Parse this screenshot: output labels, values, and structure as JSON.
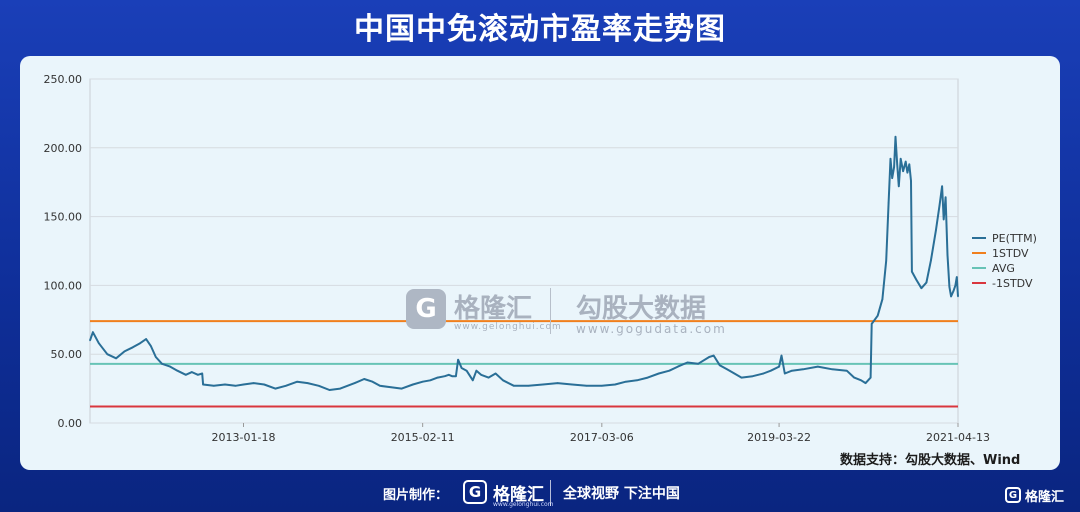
{
  "header": {
    "title": "中国中免滚动市盈率走势图"
  },
  "watermark": {
    "logo_glyph": "G",
    "brand": "格隆汇",
    "brand_sub": "www.gelonghui.com",
    "data_brand": "勾股大数据",
    "data_sub": "www.gogudata.com"
  },
  "source": "数据支持：勾股大数据、Wind",
  "footer": {
    "made_by": "图片制作：",
    "logo_glyph": "G",
    "brand": "格隆汇",
    "brand_sub": "www.gelonghui.com",
    "slogan": "全球视野 下注中国",
    "corner_glyph": "G",
    "corner_brand": "格隆汇"
  },
  "colors": {
    "pe": "#2a6f97",
    "plus1": "#f07f1d",
    "avg": "#67c3b6",
    "minus1": "#d9363e"
  },
  "chart_data": {
    "type": "line",
    "title": "",
    "xlabel": "",
    "ylabel": "",
    "ylim": [
      0,
      250
    ],
    "yticks": [
      "0.00",
      "50.00",
      "100.00",
      "150.00",
      "200.00",
      "250.00"
    ],
    "xticks": [
      "2013-01-18",
      "2015-02-11",
      "2017-03-06",
      "2019-03-22",
      "2021-04-13"
    ],
    "grid": "horizontal",
    "legend_position": "right",
    "legend": [
      "PE(TTM)",
      "1STDV",
      "AVG",
      "-1STDV"
    ],
    "x_range": [
      "2011-04-13",
      "2021-04-13"
    ],
    "reference_lines": [
      {
        "name": "1STDV",
        "value": 74
      },
      {
        "name": "AVG",
        "value": 43
      },
      {
        "name": "-1STDV",
        "value": 12
      }
    ],
    "series": [
      {
        "name": "PE(TTM)",
        "points": [
          [
            "2011-04-13",
            60
          ],
          [
            "2011-04-25",
            66
          ],
          [
            "2011-05-20",
            58
          ],
          [
            "2011-06-25",
            50
          ],
          [
            "2011-08-01",
            47
          ],
          [
            "2011-09-05",
            52
          ],
          [
            "2011-10-10",
            55
          ],
          [
            "2011-11-10",
            58
          ],
          [
            "2011-12-05",
            61
          ],
          [
            "2011-12-25",
            56
          ],
          [
            "2012-01-15",
            48
          ],
          [
            "2012-02-10",
            43
          ],
          [
            "2012-03-15",
            41
          ],
          [
            "2012-04-15",
            38
          ],
          [
            "2012-05-20",
            35
          ],
          [
            "2012-06-15",
            37
          ],
          [
            "2012-07-10",
            35
          ],
          [
            "2012-07-28",
            36
          ],
          [
            "2012-08-01",
            28
          ],
          [
            "2012-09-15",
            27
          ],
          [
            "2012-11-01",
            28
          ],
          [
            "2012-12-15",
            27
          ],
          [
            "2013-01-18",
            28
          ],
          [
            "2013-03-01",
            29
          ],
          [
            "2013-04-15",
            28
          ],
          [
            "2013-06-01",
            25
          ],
          [
            "2013-07-15",
            27
          ],
          [
            "2013-09-01",
            30
          ],
          [
            "2013-10-15",
            29
          ],
          [
            "2013-12-01",
            27
          ],
          [
            "2014-01-15",
            24
          ],
          [
            "2014-03-01",
            25
          ],
          [
            "2014-05-01",
            29
          ],
          [
            "2014-06-10",
            32
          ],
          [
            "2014-07-15",
            30
          ],
          [
            "2014-08-15",
            27
          ],
          [
            "2014-10-01",
            26
          ],
          [
            "2014-11-15",
            25
          ],
          [
            "2015-01-01",
            28
          ],
          [
            "2015-02-11",
            30
          ],
          [
            "2015-03-15",
            31
          ],
          [
            "2015-04-15",
            33
          ],
          [
            "2015-05-15",
            34
          ],
          [
            "2015-06-01",
            35
          ],
          [
            "2015-06-15",
            34
          ],
          [
            "2015-07-01",
            34
          ],
          [
            "2015-07-10",
            46
          ],
          [
            "2015-07-25",
            40
          ],
          [
            "2015-08-15",
            38
          ],
          [
            "2015-09-10",
            31
          ],
          [
            "2015-09-25",
            38
          ],
          [
            "2015-10-15",
            35
          ],
          [
            "2015-11-15",
            33
          ],
          [
            "2015-12-15",
            36
          ],
          [
            "2016-01-15",
            31
          ],
          [
            "2016-03-01",
            27
          ],
          [
            "2016-05-01",
            27
          ],
          [
            "2016-07-01",
            28
          ],
          [
            "2016-09-01",
            29
          ],
          [
            "2016-11-01",
            28
          ],
          [
            "2017-01-01",
            27
          ],
          [
            "2017-03-06",
            27
          ],
          [
            "2017-05-01",
            28
          ],
          [
            "2017-06-15",
            30
          ],
          [
            "2017-08-01",
            31
          ],
          [
            "2017-09-15",
            33
          ],
          [
            "2017-11-01",
            36
          ],
          [
            "2017-12-15",
            38
          ],
          [
            "2018-01-20",
            41
          ],
          [
            "2018-03-01",
            44
          ],
          [
            "2018-04-15",
            43
          ],
          [
            "2018-06-01",
            48
          ],
          [
            "2018-06-20",
            49
          ],
          [
            "2018-07-15",
            42
          ],
          [
            "2018-08-15",
            39
          ],
          [
            "2018-09-15",
            36
          ],
          [
            "2018-10-15",
            33
          ],
          [
            "2018-12-01",
            34
          ],
          [
            "2019-01-15",
            36
          ],
          [
            "2019-02-15",
            38
          ],
          [
            "2019-03-22",
            41
          ],
          [
            "2019-04-01",
            49
          ],
          [
            "2019-04-15",
            36
          ],
          [
            "2019-05-15",
            38
          ],
          [
            "2019-07-01",
            39
          ],
          [
            "2019-09-01",
            41
          ],
          [
            "2019-11-01",
            39
          ],
          [
            "2020-01-01",
            38
          ],
          [
            "2020-02-01",
            33
          ],
          [
            "2020-03-01",
            31
          ],
          [
            "2020-03-20",
            29
          ],
          [
            "2020-04-10",
            33
          ],
          [
            "2020-04-15",
            72
          ],
          [
            "2020-05-10",
            78
          ],
          [
            "2020-05-30",
            90
          ],
          [
            "2020-06-15",
            118
          ],
          [
            "2020-06-25",
            160
          ],
          [
            "2020-07-03",
            192
          ],
          [
            "2020-07-10",
            178
          ],
          [
            "2020-07-18",
            186
          ],
          [
            "2020-07-24",
            208
          ],
          [
            "2020-07-31",
            188
          ],
          [
            "2020-08-07",
            172
          ],
          [
            "2020-08-15",
            192
          ],
          [
            "2020-08-25",
            183
          ],
          [
            "2020-09-05",
            190
          ],
          [
            "2020-09-12",
            182
          ],
          [
            "2020-09-20",
            188
          ],
          [
            "2020-09-27",
            176
          ],
          [
            "2020-10-01",
            110
          ],
          [
            "2020-10-20",
            104
          ],
          [
            "2020-11-10",
            98
          ],
          [
            "2020-12-01",
            102
          ],
          [
            "2020-12-20",
            118
          ],
          [
            "2021-01-10",
            140
          ],
          [
            "2021-01-25",
            158
          ],
          [
            "2021-02-05",
            172
          ],
          [
            "2021-02-12",
            148
          ],
          [
            "2021-02-20",
            164
          ],
          [
            "2021-02-28",
            122
          ],
          [
            "2021-03-08",
            99
          ],
          [
            "2021-03-15",
            92
          ],
          [
            "2021-03-25",
            96
          ],
          [
            "2021-04-02",
            100
          ],
          [
            "2021-04-08",
            106
          ],
          [
            "2021-04-13",
            92
          ]
        ]
      }
    ]
  }
}
